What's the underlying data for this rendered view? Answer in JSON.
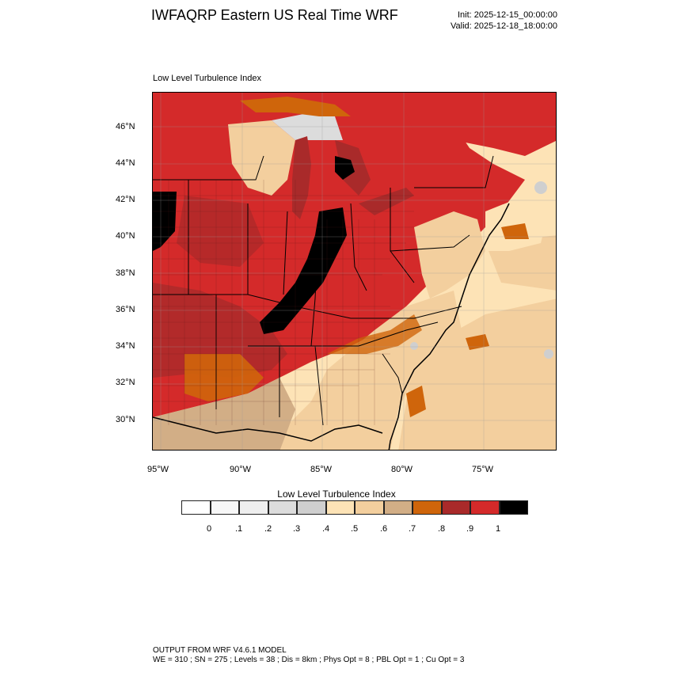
{
  "header": {
    "title": "IWFAQRP Eastern US Real Time WRF",
    "init": "Init: 2025-12-15_00:00:00",
    "valid": "Valid: 2025-12-18_18:00:00"
  },
  "map": {
    "label": "Low Level Turbulence Index",
    "lat_ticks": [
      "46°N",
      "44°N",
      "42°N",
      "40°N",
      "38°N",
      "36°N",
      "34°N",
      "32°N",
      "30°N"
    ],
    "lon_ticks": [
      "95°W",
      "90°W",
      "85°W",
      "80°W",
      "75°W"
    ]
  },
  "colorbar": {
    "title": "Low Level Turbulence Index",
    "labels": [
      "0",
      ".1",
      ".2",
      ".3",
      ".4",
      ".5",
      ".6",
      ".7",
      ".8",
      ".9",
      "1"
    ],
    "colors": [
      "#ffffff",
      "#f7f7f7",
      "#eeeeee",
      "#dcdcdc",
      "#cfcfcf",
      "#fde3b6",
      "#f3cf9e",
      "#d2ae86",
      "#cf650b",
      "#a92a2a",
      "#d42a2a",
      "#000000"
    ]
  },
  "footer": {
    "line1": "OUTPUT FROM WRF V4.6.1 MODEL",
    "line2": "WE = 310 ; SN = 275 ; Levels = 38 ; Dis = 8km ; Phys Opt = 8 ; PBL Opt = 1 ; Cu Opt = 3"
  }
}
